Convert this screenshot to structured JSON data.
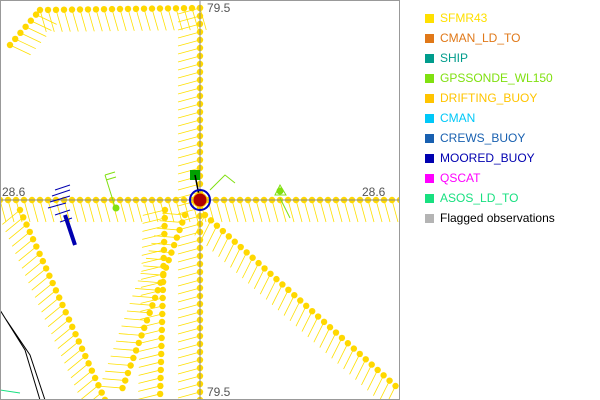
{
  "map": {
    "crosshair_labels": {
      "top": "79.5",
      "bottom": "79.5",
      "left": "28.6",
      "right": "28.6"
    }
  },
  "legend": [
    {
      "label": "SFMR43",
      "color": "#ffe000"
    },
    {
      "label": "CMAN_LD_TO",
      "color": "#e07818"
    },
    {
      "label": "SHIP",
      "color": "#009c8c"
    },
    {
      "label": "GPSSONDE_WL150",
      "color": "#80e010"
    },
    {
      "label": "DRIFTING_BUOY",
      "color": "#ffc400"
    },
    {
      "label": "CMAN",
      "color": "#00c8f8"
    },
    {
      "label": "CREWS_BUOY",
      "color": "#1860b0"
    },
    {
      "label": "MOORED_BUOY",
      "color": "#0000b0"
    },
    {
      "label": "QSCAT",
      "color": "#ff00ff"
    },
    {
      "label": "ASOS_LD_TO",
      "color": "#18e080"
    },
    {
      "label": "Flagged observations",
      "color": "#b4b4b4",
      "text_color": "#000000"
    }
  ]
}
